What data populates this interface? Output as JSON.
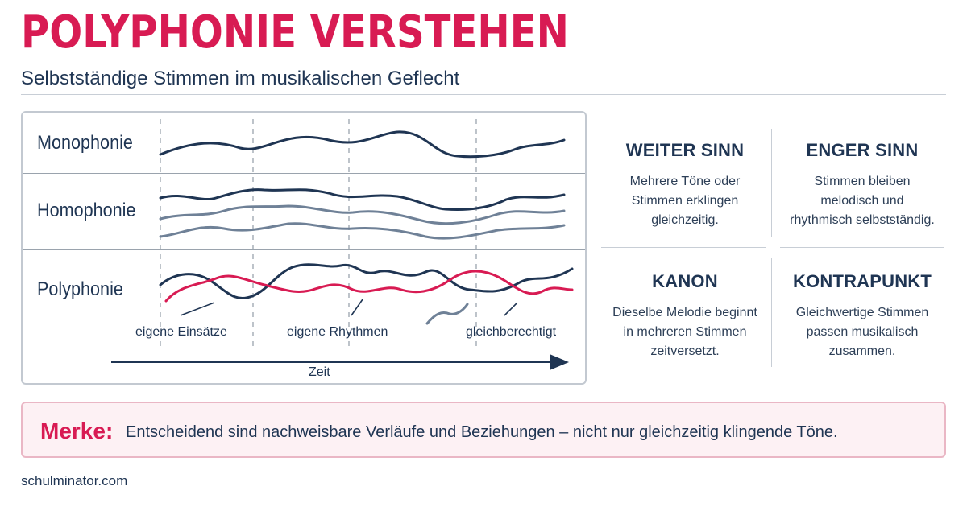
{
  "header": {
    "title": "POLYPHONIE VERSTEHEN",
    "subtitle": "Selbstständige Stimmen im musikalischen Geflecht"
  },
  "diagram": {
    "rows": [
      {
        "label": "Monophonie"
      },
      {
        "label": "Homophonie"
      },
      {
        "label": "Polyphonie"
      }
    ],
    "annotations": [
      "eigene Einsätze",
      "eigene Rhythmen",
      "gleichberechtigt"
    ],
    "axis_label": "Zeit",
    "colors": {
      "navy": "#1f3553",
      "slate": "#6f8197",
      "accent": "#d81b53",
      "divider": "#9aa3ad"
    }
  },
  "definitions": [
    {
      "title": "WEITER SINN",
      "text": "Mehrere Töne oder Stimmen erklingen gleichzeitig."
    },
    {
      "title": "ENGER SINN",
      "text": "Stimmen bleiben melodisch und rhythmisch selbstständig."
    },
    {
      "title": "KANON",
      "text": "Dieselbe Melodie beginnt in mehreren Stimmen zeitversetzt."
    },
    {
      "title": "KONTRAPUNKT",
      "text": "Gleichwertige Stimmen passen musikalisch zusammen."
    }
  ],
  "note": {
    "key": "Merke:",
    "text": "Entscheidend sind nachweisbare Verläufe und Beziehungen – nicht nur gleichzeitig klingende Töne."
  },
  "footer": {
    "source": "schulminator.com"
  }
}
